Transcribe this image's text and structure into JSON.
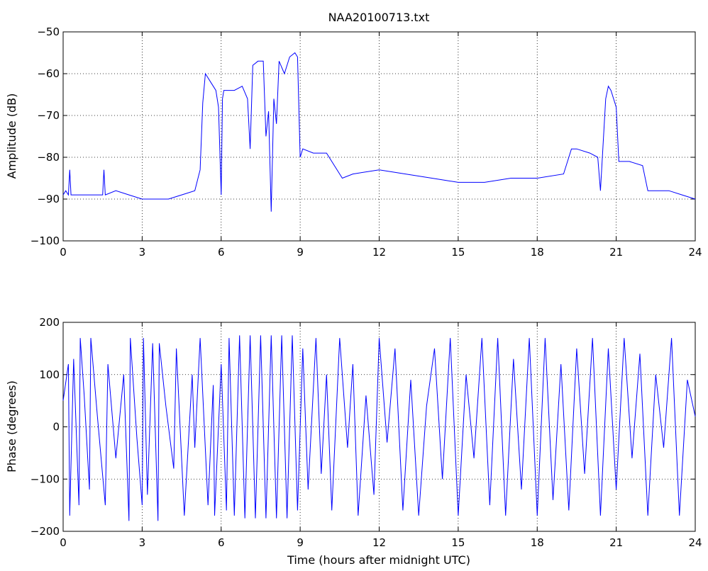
{
  "figure_title": "NAA20100713.txt",
  "colors": {
    "series": "#0000ff",
    "axes": "#000000",
    "background": "#ffffff"
  },
  "chart_data": [
    {
      "type": "line",
      "title": "NAA20100713.txt",
      "xlabel": "",
      "ylabel": "Amplitude (dB)",
      "xlim": [
        0,
        24
      ],
      "ylim": [
        -100,
        -50
      ],
      "xticks": [
        0,
        3,
        6,
        9,
        12,
        15,
        18,
        21,
        24
      ],
      "yticks": [
        -100,
        -90,
        -80,
        -70,
        -60,
        -50
      ],
      "xtick_labels": [
        "0",
        "3",
        "6",
        "9",
        "12",
        "15",
        "18",
        "21",
        "24"
      ],
      "ytick_labels": [
        "−100",
        "−90",
        "−80",
        "−70",
        "−60",
        "−50"
      ],
      "grid": true,
      "series": [
        {
          "color": "#0000ff",
          "x": [
            0,
            0.1,
            0.2,
            0.25,
            0.3,
            0.4,
            0.6,
            1.0,
            1.5,
            1.55,
            1.6,
            2.0,
            2.5,
            3.0,
            3.5,
            4.0,
            4.5,
            5.0,
            5.2,
            5.3,
            5.4,
            5.6,
            5.8,
            5.9,
            6.0,
            6.05,
            6.1,
            6.5,
            6.8,
            7.0,
            7.1,
            7.2,
            7.4,
            7.6,
            7.7,
            7.8,
            7.9,
            8.0,
            8.1,
            8.2,
            8.4,
            8.6,
            8.8,
            8.9,
            9.0,
            9.1,
            9.5,
            10.0,
            10.5,
            10.6,
            11.0,
            12.0,
            13.0,
            14.0,
            15.0,
            16.0,
            17.0,
            18.0,
            19.0,
            19.3,
            19.5,
            20.0,
            20.3,
            20.4,
            20.6,
            20.7,
            20.8,
            21.0,
            21.1,
            21.5,
            22.0,
            22.2,
            22.5,
            23.0,
            23.5,
            24.0
          ],
          "values": [
            -89,
            -88,
            -89,
            -83,
            -89,
            -89,
            -89,
            -89,
            -89,
            -83,
            -89,
            -88,
            -89,
            -90,
            -90,
            -90,
            -89,
            -88,
            -83,
            -67,
            -60,
            -62,
            -64,
            -68,
            -89,
            -66,
            -64,
            -64,
            -63,
            -66,
            -78,
            -58,
            -57,
            -57,
            -75,
            -69,
            -93,
            -66,
            -72,
            -57,
            -60,
            -56,
            -55,
            -56,
            -80,
            -78,
            -79,
            -79,
            -84,
            -85,
            -84,
            -83,
            -84,
            -85,
            -86,
            -86,
            -85,
            -85,
            -84,
            -78,
            -78,
            -79,
            -80,
            -88,
            -66,
            -63,
            -64,
            -68,
            -81,
            -81,
            -82,
            -88,
            -88,
            -88,
            -89,
            -90
          ]
        }
      ]
    },
    {
      "type": "line",
      "title": "",
      "xlabel": "Time (hours after midnight UTC)",
      "ylabel": "Phase (degrees)",
      "xlim": [
        0,
        24
      ],
      "ylim": [
        -200,
        200
      ],
      "xticks": [
        0,
        3,
        6,
        9,
        12,
        15,
        18,
        21,
        24
      ],
      "yticks": [
        -200,
        -100,
        0,
        100,
        200
      ],
      "xtick_labels": [
        "0",
        "3",
        "6",
        "9",
        "12",
        "15",
        "18",
        "21",
        "24"
      ],
      "ytick_labels": [
        "−200",
        "−100",
        "0",
        "100",
        "200"
      ],
      "grid": true,
      "series": [
        {
          "color": "#0000ff",
          "x": [
            0,
            0.2,
            0.25,
            0.4,
            0.6,
            0.65,
            0.8,
            1.0,
            1.05,
            1.3,
            1.6,
            1.7,
            2.0,
            2.3,
            2.5,
            2.55,
            2.8,
            3.0,
            3.05,
            3.2,
            3.4,
            3.6,
            3.65,
            3.9,
            4.2,
            4.3,
            4.6,
            4.9,
            5.0,
            5.2,
            5.5,
            5.7,
            5.75,
            6.0,
            6.2,
            6.3,
            6.5,
            6.7,
            6.9,
            7.1,
            7.3,
            7.5,
            7.7,
            7.9,
            8.1,
            8.3,
            8.5,
            8.7,
            8.9,
            9.1,
            9.3,
            9.6,
            9.8,
            10.0,
            10.2,
            10.5,
            10.8,
            11.0,
            11.2,
            11.5,
            11.8,
            12.0,
            12.3,
            12.6,
            12.9,
            13.2,
            13.5,
            13.8,
            14.1,
            14.4,
            14.7,
            15.0,
            15.3,
            15.6,
            15.9,
            16.2,
            16.5,
            16.8,
            17.1,
            17.4,
            17.7,
            18.0,
            18.3,
            18.6,
            18.9,
            19.2,
            19.5,
            19.8,
            20.1,
            20.4,
            20.7,
            21.0,
            21.3,
            21.6,
            21.9,
            22.2,
            22.5,
            22.8,
            23.1,
            23.4,
            23.7,
            24.0
          ],
          "values": [
            50,
            120,
            -170,
            130,
            -150,
            170,
            60,
            -120,
            170,
            20,
            -150,
            120,
            -60,
            100,
            -180,
            170,
            -20,
            -150,
            170,
            -130,
            160,
            -180,
            160,
            40,
            -80,
            150,
            -170,
            100,
            -40,
            170,
            -150,
            80,
            -170,
            120,
            -160,
            170,
            -170,
            175,
            -175,
            175,
            -175,
            175,
            -175,
            175,
            -175,
            175,
            -175,
            175,
            -160,
            150,
            -120,
            170,
            -90,
            100,
            -160,
            170,
            -40,
            120,
            -170,
            60,
            -130,
            170,
            -30,
            150,
            -160,
            90,
            -170,
            40,
            150,
            -100,
            170,
            -170,
            100,
            -60,
            170,
            -150,
            170,
            -170,
            130,
            -120,
            170,
            -170,
            170,
            -140,
            120,
            -160,
            150,
            -90,
            170,
            -170,
            150,
            -120,
            170,
            -60,
            140,
            -170,
            100,
            -40,
            170,
            -170,
            90,
            20
          ]
        }
      ]
    }
  ]
}
